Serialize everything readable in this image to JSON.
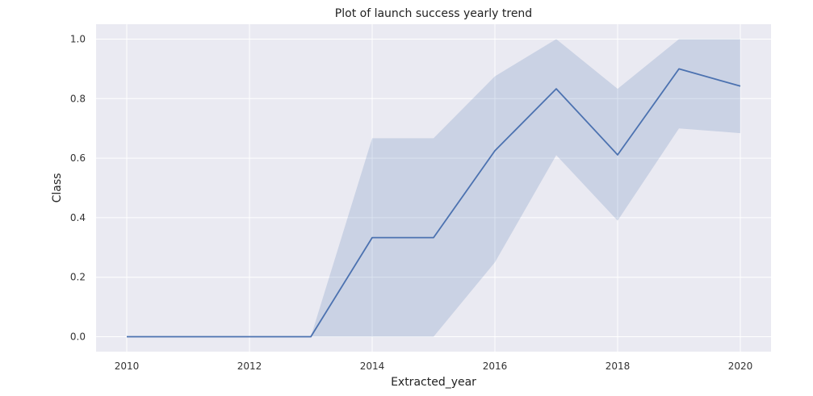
{
  "chart_data": {
    "type": "line",
    "title": "Plot of launch success yearly trend",
    "xlabel": "Extracted_year",
    "ylabel": "Class",
    "x": [
      2010,
      2013,
      2014,
      2015,
      2016,
      2017,
      2018,
      2019,
      2020
    ],
    "series": [
      {
        "values": [
          0.0,
          0.0,
          0.333,
          0.333,
          0.625,
          0.833,
          0.611,
          0.9,
          0.842
        ],
        "ci_lower": [
          0.0,
          0.0,
          0.0,
          0.0,
          0.25,
          0.61,
          0.39,
          0.7,
          0.684
        ],
        "ci_upper": [
          0.0,
          0.0,
          0.667,
          0.667,
          0.875,
          1.0,
          0.833,
          1.0,
          1.0
        ]
      }
    ],
    "xticks": [
      "2010",
      "2012",
      "2014",
      "2016",
      "2018",
      "2020"
    ],
    "yticks": [
      "0.0",
      "0.2",
      "0.4",
      "0.6",
      "0.8",
      "1.0"
    ],
    "xlim": [
      2009.5,
      2020.5
    ],
    "ylim": [
      -0.05,
      1.05
    ],
    "grid": true,
    "colors": {
      "line": "#4c72b0",
      "band": "#4c72b0",
      "background": "#eaeaf2",
      "grid": "#ffffff"
    }
  }
}
